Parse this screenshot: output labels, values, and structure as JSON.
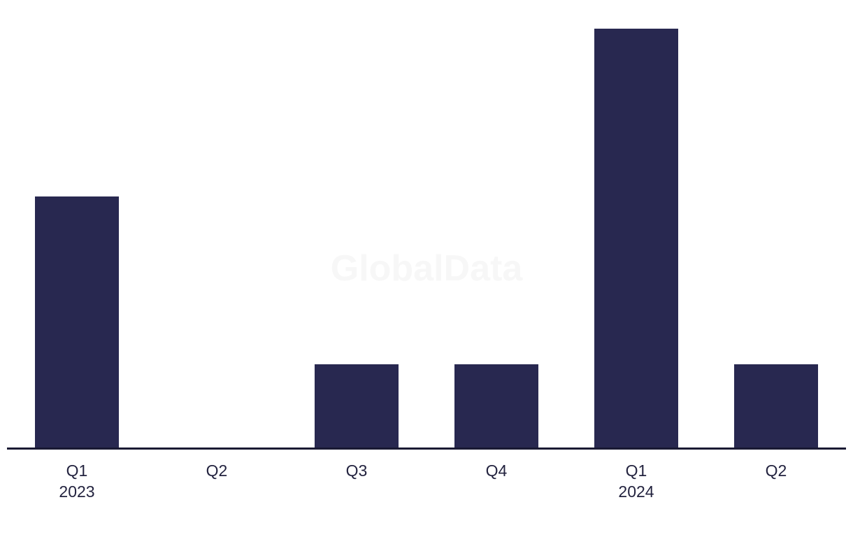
{
  "watermark": "GlobalData",
  "chart_data": {
    "type": "bar",
    "categories": [
      "Q1 2023",
      "Q2 2023",
      "Q3 2023",
      "Q4 2023",
      "Q1 2024",
      "Q2 2024"
    ],
    "tick_labels": [
      [
        "Q1",
        "2023"
      ],
      [
        "Q2"
      ],
      [
        "Q3"
      ],
      [
        "Q4"
      ],
      [
        "Q1",
        "2024"
      ],
      [
        "Q2"
      ]
    ],
    "values": [
      3,
      0,
      1,
      1,
      5,
      1
    ],
    "title": "",
    "xlabel": "",
    "ylabel": "",
    "ylim": [
      0,
      5
    ],
    "grid": false,
    "legend": false,
    "bar_color": "#282850",
    "axis_color": "#1a1a33",
    "tick_label_color": "#23233f",
    "watermark_color": "#f7f7f7",
    "background_color": "#ffffff"
  }
}
